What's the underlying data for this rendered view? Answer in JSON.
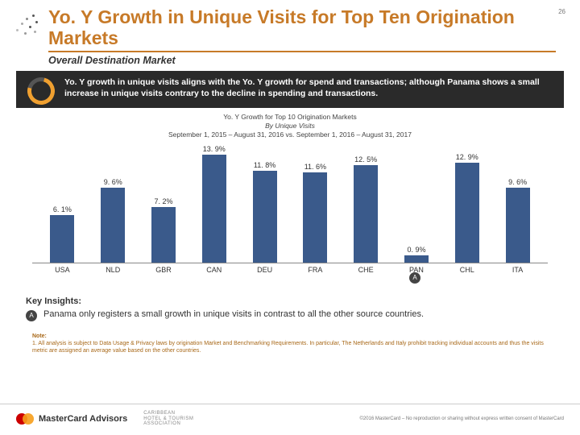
{
  "page_number": "26",
  "header": {
    "title": "Yo. Y Growth in Unique Visits for Top Ten Origination Markets",
    "subtitle": "Overall Destination Market"
  },
  "band": {
    "text": "Yo. Y growth in unique visits aligns with the Yo. Y growth for spend and transactions; although Panama shows a small increase in unique visits contrary to the decline in spending and transactions."
  },
  "chart": {
    "type": "bar",
    "title_line1": "Yo. Y Growth for Top 10 Origination Markets",
    "title_line2": "By Unique Visits",
    "title_line3": "September 1, 2015 – August 31, 2016 vs. September 1, 2016 – August 31, 2017",
    "categories": [
      "USA",
      "NLD",
      "GBR",
      "CAN",
      "DEU",
      "FRA",
      "CHE",
      "PAN",
      "CHL",
      "ITA"
    ],
    "values": [
      6.1,
      9.6,
      7.2,
      13.9,
      11.8,
      11.6,
      12.5,
      0.9,
      12.9,
      9.6
    ],
    "value_labels": [
      "6. 1%",
      "9. 6%",
      "7. 2%",
      "13. 9%",
      "11. 8%",
      "11. 6%",
      "12. 5%",
      "0. 9%",
      "12. 9%",
      "9. 6%"
    ],
    "bar_color": "#3a5a8b",
    "y_max": 14.0,
    "annotation_letter": "A",
    "annotation_index": 7
  },
  "insights": {
    "heading": "Key Insights:",
    "items": [
      {
        "letter": "A",
        "text": "Panama  only registers a small growth in unique visits in contrast to all the other source countries."
      }
    ]
  },
  "note": {
    "heading": "Note:",
    "text": "1. All analysis is subject to Data Usage & Privacy laws by origination Market and Benchmarking Requirements. In particular, The Netherlands and Italy prohibit tracking individual accounts and thus the visits metric are assigned an average value based on the other countries."
  },
  "footer": {
    "brand": "MasterCard Advisors",
    "partner_line1": "CARIBBEAN",
    "partner_line2": "HOTEL & TOURISM",
    "partner_line3": "ASSOCIATION",
    "copyright": "©2016 MasterCard – No reproduction or sharing without express written consent of MasterCard"
  }
}
